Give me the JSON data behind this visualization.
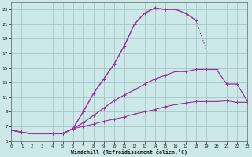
{
  "xlabel": "Windchill (Refroidissement éolien,°C)",
  "bg_color": "#cce8e8",
  "grid_color": "#9fbfbf",
  "line_color": "#993399",
  "xlim": [
    0,
    23
  ],
  "ylim": [
    5,
    24
  ],
  "yticks": [
    5,
    7,
    9,
    11,
    13,
    15,
    17,
    19,
    21,
    23
  ],
  "xticks": [
    0,
    1,
    2,
    3,
    4,
    5,
    6,
    7,
    8,
    9,
    10,
    11,
    12,
    13,
    14,
    15,
    16,
    17,
    18,
    19,
    20,
    21,
    22,
    23
  ],
  "curves": [
    {
      "x": [
        0,
        1,
        2,
        3,
        4,
        5,
        6,
        7,
        8,
        9,
        10,
        11,
        12,
        13,
        14,
        15,
        16,
        17,
        18,
        19
      ],
      "y": [
        6.5,
        6.2,
        6.0,
        6.0,
        6.0,
        6.0,
        6.7,
        9.0,
        11.5,
        13.5,
        15.5,
        18.0,
        21.0,
        22.5,
        23.2,
        23.0,
        23.0,
        22.5,
        21.5,
        17.5
      ],
      "style": ":",
      "lw": 0.9,
      "has_markers": false
    },
    {
      "x": [
        0,
        1,
        2,
        3,
        4,
        5,
        6,
        7,
        8,
        9,
        10,
        11,
        12,
        13,
        14,
        15,
        16,
        17,
        18
      ],
      "y": [
        6.5,
        6.2,
        6.0,
        6.0,
        6.0,
        6.0,
        6.7,
        9.0,
        11.5,
        13.5,
        15.5,
        18.0,
        21.0,
        22.5,
        23.2,
        23.0,
        23.0,
        22.5,
        21.5
      ],
      "style": "-",
      "lw": 1.0,
      "has_markers": true
    },
    {
      "x": [
        0,
        1,
        2,
        3,
        4,
        5,
        6,
        7,
        8,
        9,
        10,
        11,
        12,
        13,
        14,
        15,
        16,
        17,
        18,
        19,
        20,
        21,
        22,
        23
      ],
      "y": [
        6.5,
        6.2,
        6.0,
        6.0,
        6.0,
        6.0,
        6.7,
        7.5,
        8.5,
        9.5,
        10.5,
        11.3,
        12.0,
        12.8,
        13.5,
        14.0,
        14.5,
        14.5,
        14.8,
        14.8,
        14.8,
        12.8,
        12.8,
        10.5
      ],
      "style": "-",
      "lw": 0.9,
      "has_markers": true
    },
    {
      "x": [
        0,
        1,
        2,
        3,
        4,
        5,
        6,
        7,
        8,
        9,
        10,
        11,
        12,
        13,
        14,
        15,
        16,
        17,
        18,
        19,
        20,
        21,
        22,
        23
      ],
      "y": [
        6.5,
        6.2,
        6.0,
        6.0,
        6.0,
        6.0,
        6.7,
        7.0,
        7.3,
        7.7,
        8.0,
        8.3,
        8.7,
        9.0,
        9.3,
        9.7,
        10.0,
        10.2,
        10.4,
        10.4,
        10.4,
        10.5,
        10.3,
        10.3
      ],
      "style": "-",
      "lw": 0.8,
      "has_markers": true
    }
  ]
}
